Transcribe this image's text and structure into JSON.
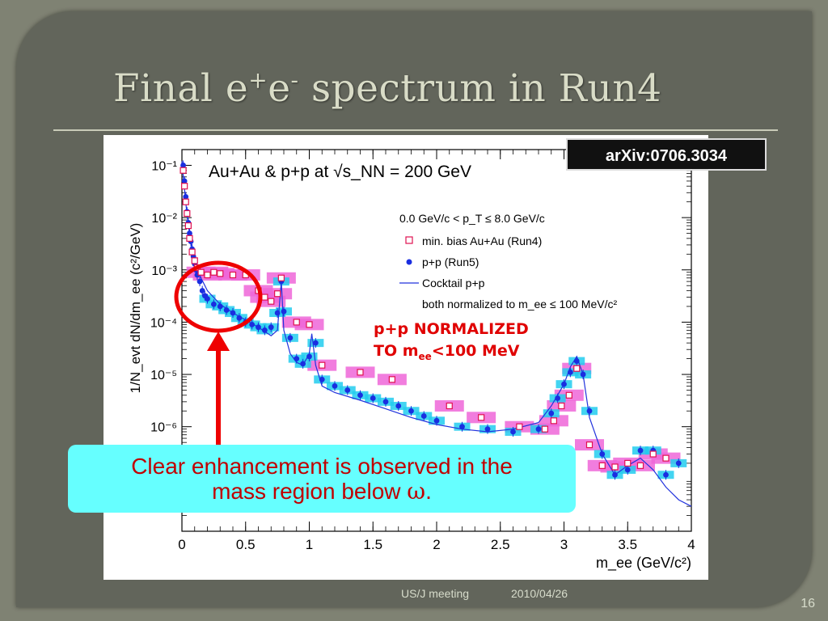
{
  "slide": {
    "title_main": "Final e",
    "title_sup1": "+",
    "title_mid": "e",
    "title_sup2": "-",
    "title_end": " spectrum in Run4",
    "badge": "arXiv:0706.3034",
    "annotation_line1": "p+p NORMALIZED",
    "annotation_line2_pre": "TO m",
    "annotation_line2_sub": "ee",
    "annotation_line2_post": "<100 MeV",
    "callout_line1": "Clear enhancement is observed in the",
    "callout_line2_pre": "mass region below ",
    "callout_symbol": "ω",
    "callout_line2_post": ".",
    "footer_left": "US/J meeting",
    "footer_date": "2010/04/26",
    "page_number": "16"
  },
  "colors": {
    "auau": "#e01050",
    "auau_box": "#ee66d8",
    "pp": "#1a2ee0",
    "pp_box": "#22ccee",
    "cocktail": "#2233dd",
    "highlight": "#ee0000",
    "callout_bg": "#66ffff"
  },
  "chart_data": {
    "type": "scatter",
    "title": "Au+Au & p+p at √s_NN = 200 GeV",
    "xlabel": "m_ee (GeV/c²)",
    "ylabel": "1/N_evt dN/dm_ee (c²/GeV)",
    "xlim": [
      0,
      4
    ],
    "ylim": [
      1e-08,
      0.2
    ],
    "yscale": "log",
    "x_ticks": [
      "0",
      "0.5",
      "1",
      "1.5",
      "2",
      "2.5",
      "3",
      "3.5",
      "4"
    ],
    "y_ticks": [
      "10⁻¹",
      "10⁻²",
      "10⁻³",
      "10⁻⁴",
      "10⁻⁵",
      "10⁻⁶"
    ],
    "legend": {
      "header": "0.0 GeV/c < p_T ≤ 8.0 GeV/c",
      "entries": [
        "min. bias Au+Au (Run4)",
        "p+p (Run5)",
        "Cocktail p+p"
      ],
      "footer": "both normalized to m_ee ≤ 100 MeV/c²"
    },
    "series": [
      {
        "name": "min. bias Au+Au (Run4)",
        "x": [
          0.01,
          0.02,
          0.03,
          0.04,
          0.05,
          0.06,
          0.08,
          0.1,
          0.12,
          0.15,
          0.2,
          0.25,
          0.3,
          0.4,
          0.5,
          0.6,
          0.65,
          0.7,
          0.75,
          0.78,
          0.9,
          1.0,
          1.1,
          1.4,
          1.65,
          2.1,
          2.35,
          2.65,
          2.85,
          2.92,
          2.98,
          3.04,
          3.1,
          3.2,
          3.3,
          3.4,
          3.5,
          3.6,
          3.7,
          3.8
        ],
        "values": [
          0.08,
          0.04,
          0.02,
          0.012,
          0.007,
          0.004,
          0.0022,
          0.0015,
          0.0011,
          0.0009,
          0.0008,
          0.0009,
          0.00085,
          0.0008,
          0.0008,
          0.0004,
          0.0003,
          0.00025,
          0.00035,
          0.0007,
          0.0001,
          9e-05,
          1.5e-05,
          1.1e-05,
          8e-06,
          2.5e-06,
          1.5e-06,
          1e-06,
          9e-07,
          1.3e-06,
          2.5e-06,
          4e-06,
          1.3e-05,
          4.5e-07,
          1.8e-07,
          1.7e-07,
          2e-07,
          1.8e-07,
          3e-07,
          2.5e-07
        ]
      },
      {
        "name": "p+p (Run5)",
        "x": [
          0.01,
          0.02,
          0.03,
          0.04,
          0.05,
          0.06,
          0.07,
          0.08,
          0.09,
          0.1,
          0.11,
          0.12,
          0.14,
          0.16,
          0.18,
          0.2,
          0.25,
          0.3,
          0.35,
          0.4,
          0.45,
          0.5,
          0.55,
          0.6,
          0.65,
          0.7,
          0.75,
          0.78,
          0.8,
          0.85,
          0.9,
          0.95,
          1.0,
          1.05,
          1.1,
          1.2,
          1.3,
          1.4,
          1.5,
          1.6,
          1.7,
          1.8,
          1.9,
          2.0,
          2.2,
          2.4,
          2.6,
          2.8,
          2.9,
          2.95,
          3.0,
          3.05,
          3.1,
          3.15,
          3.2,
          3.3,
          3.4,
          3.5,
          3.6,
          3.7,
          3.8,
          3.9
        ],
        "values": [
          0.1,
          0.05,
          0.025,
          0.013,
          0.008,
          0.005,
          0.0035,
          0.0025,
          0.0018,
          0.0013,
          0.001,
          0.0008,
          0.0006,
          0.0004,
          0.00032,
          0.00028,
          0.00022,
          0.0002,
          0.00017,
          0.00015,
          0.00012,
          0.0001,
          9e-05,
          8e-05,
          7e-05,
          8e-05,
          0.00015,
          0.0006,
          0.00016,
          5e-05,
          2e-05,
          1.6e-05,
          2.2e-05,
          4e-05,
          8e-06,
          6e-06,
          5e-06,
          4e-06,
          3.5e-06,
          3e-06,
          2.5e-06,
          2e-06,
          1.6e-06,
          1.3e-06,
          1e-06,
          9e-07,
          8e-07,
          9e-07,
          1.8e-06,
          3.5e-06,
          6.5e-06,
          1.1e-05,
          1.8e-05,
          1e-05,
          2e-06,
          3e-07,
          1.2e-07,
          1.5e-07,
          3.5e-07,
          3.5e-07,
          1.2e-07,
          2e-07
        ]
      },
      {
        "name": "Cocktail p+p",
        "x": [
          0.0,
          0.02,
          0.04,
          0.06,
          0.08,
          0.1,
          0.15,
          0.2,
          0.3,
          0.4,
          0.5,
          0.6,
          0.7,
          0.75,
          0.78,
          0.8,
          0.85,
          0.9,
          0.95,
          1.0,
          1.02,
          1.05,
          1.1,
          1.2,
          1.4,
          1.6,
          1.8,
          2.0,
          2.2,
          2.4,
          2.6,
          2.8,
          2.9,
          3.0,
          3.05,
          3.1,
          3.15,
          3.2,
          3.3,
          3.4,
          3.5,
          3.6,
          3.7,
          3.8,
          3.9,
          4.0
        ],
        "values": [
          0.12,
          0.035,
          0.011,
          0.0048,
          0.0026,
          0.0016,
          0.0007,
          0.0004,
          0.00022,
          0.00015,
          0.00011,
          8e-05,
          5.5e-05,
          7e-05,
          0.0006,
          7e-05,
          2.5e-05,
          1.7e-05,
          1.5e-05,
          2.5e-05,
          6e-05,
          1.5e-05,
          6e-06,
          4.5e-06,
          3.2e-06,
          2.2e-06,
          1.5e-06,
          1.1e-06,
          9e-07,
          8e-07,
          9e-07,
          1.2e-06,
          2.5e-06,
          6.5e-06,
          1.4e-05,
          2.2e-05,
          1e-05,
          1.5e-06,
          3e-07,
          1.2e-07,
          1.8e-07,
          2.5e-07,
          1.5e-07,
          7e-08,
          4e-08,
          3e-08
        ]
      }
    ]
  }
}
